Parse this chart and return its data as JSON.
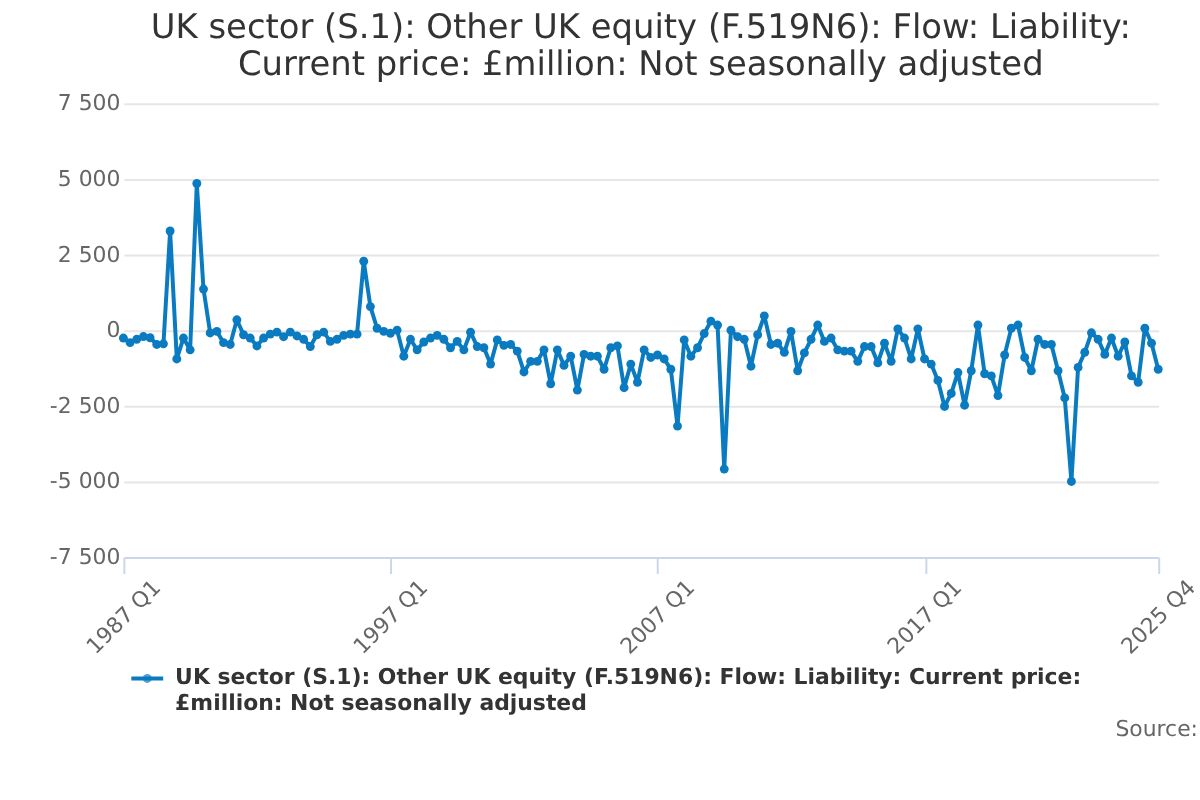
{
  "chart_data": {
    "type": "line",
    "title": "UK sector (S.1): Other UK equity (F.519N6): Flow: Liability: Current price: £million: Not seasonally adjusted",
    "categories": [
      "1987 Q1",
      null,
      null,
      null,
      null,
      null,
      null,
      null,
      null,
      null,
      null,
      null,
      null,
      null,
      null,
      null,
      null,
      null,
      null,
      null,
      null,
      null,
      null,
      null,
      null,
      null,
      null,
      null,
      null,
      null,
      null,
      null,
      null,
      null,
      null,
      null,
      null,
      null,
      null,
      null,
      "1997 Q1",
      null,
      null,
      null,
      null,
      null,
      null,
      null,
      null,
      null,
      null,
      null,
      null,
      null,
      null,
      null,
      null,
      null,
      null,
      null,
      null,
      null,
      null,
      null,
      null,
      null,
      null,
      null,
      null,
      null,
      null,
      null,
      null,
      null,
      null,
      null,
      null,
      null,
      null,
      null,
      "2007 Q1",
      null,
      null,
      null,
      null,
      null,
      null,
      null,
      null,
      null,
      null,
      null,
      null,
      null,
      null,
      null,
      null,
      null,
      null,
      null,
      null,
      null,
      null,
      null,
      null,
      null,
      null,
      null,
      null,
      null,
      null,
      null,
      null,
      null,
      null,
      null,
      null,
      null,
      null,
      null,
      "2017 Q1",
      null,
      null,
      null,
      null,
      null,
      null,
      null,
      null,
      null,
      null,
      null,
      null,
      null,
      null,
      null,
      null,
      null,
      null,
      null,
      null,
      null,
      null,
      null,
      null,
      null,
      null,
      null,
      null,
      null,
      null,
      null,
      null,
      null,
      null,
      "2025 Q4"
    ],
    "series": [
      {
        "name": "UK sector (S.1): Other UK equity (F.519N6): Flow: Liability: Current price: £million: Not seasonally adjusted",
        "color": "#0a7bc0",
        "values": [
          -260,
          -410,
          -300,
          -210,
          -250,
          -470,
          -450,
          3280,
          -950,
          -260,
          -650,
          4850,
          1360,
          -90,
          -40,
          -410,
          -470,
          345,
          -150,
          -260,
          -520,
          -260,
          -130,
          -65,
          -215,
          -65,
          -190,
          -300,
          -540,
          -150,
          -65,
          -370,
          -300,
          -170,
          -130,
          -130,
          2280,
          780,
          65,
          -40,
          -100,
          0,
          -860,
          -300,
          -650,
          -390,
          -260,
          -170,
          -300,
          -580,
          -370,
          -650,
          -65,
          -540,
          -580,
          -1120,
          -320,
          -500,
          -470,
          -690,
          -1380,
          -1030,
          -1030,
          -650,
          -1770,
          -650,
          -1160,
          -860,
          -1980,
          -800,
          -860,
          -860,
          -1290,
          -580,
          -520,
          -1900,
          -1120,
          -1720,
          -650,
          -900,
          -820,
          -950,
          -1290,
          -3170,
          -320,
          -860,
          -580,
          -110,
          300,
          170,
          -4590,
          0,
          -215,
          -300,
          -1190,
          -150,
          475,
          -470,
          -430,
          -730,
          -40,
          -1340,
          -750,
          -300,
          170,
          -370,
          -260,
          -650,
          -690,
          -690,
          -1030,
          -540,
          -540,
          -1080,
          -430,
          -1030,
          45,
          -260,
          -950,
          45,
          -950,
          -1120,
          -1660,
          -2520,
          -2090,
          -1400,
          -2480,
          -1340,
          170,
          -1440,
          -1510,
          -2160,
          -820,
          65,
          170,
          -900,
          -1340,
          -300,
          -470,
          -470,
          -1340,
          -2240,
          -5000,
          -1230,
          -730,
          -85,
          -300,
          -800,
          -260,
          -860,
          -390,
          -1510,
          -1720,
          65,
          -430,
          -1290
        ]
      }
    ],
    "ylim": [
      -7500,
      7500
    ],
    "yticks": [
      {
        "value": -7500,
        "label": "-7 500"
      },
      {
        "value": -5000,
        "label": "-5 000"
      },
      {
        "value": -2500,
        "label": "-2 500"
      },
      0,
      {
        "value": 2500,
        "label": "2 500"
      },
      {
        "value": 5000,
        "label": "5 000"
      },
      {
        "value": 7500,
        "label": "7 500"
      }
    ],
    "grid": "y",
    "legend": "bottom",
    "marker": "circle",
    "line_style": "solid",
    "annotations": [
      "Source:"
    ]
  }
}
